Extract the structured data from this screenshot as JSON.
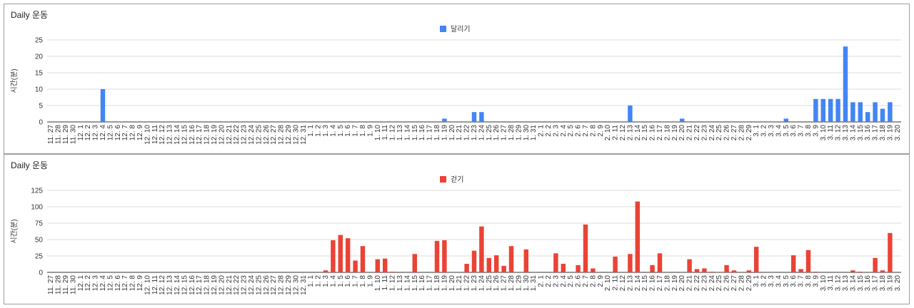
{
  "chart_data": [
    {
      "type": "bar",
      "title": "Daily 운동",
      "ylabel": "시간(분)",
      "ylim": [
        0,
        25
      ],
      "yticks": [
        0,
        5,
        10,
        15,
        20,
        25
      ],
      "legend_position": "top-center",
      "grid": true,
      "color": "#4285f4",
      "categories": [
        "11. 27",
        "11. 28",
        "11. 29",
        "11. 30",
        "12. 1",
        "12. 2",
        "12. 3",
        "12. 4",
        "12. 5",
        "12. 6",
        "12. 7",
        "12. 8",
        "12. 9",
        "12. 10",
        "12. 11",
        "12. 12",
        "12. 13",
        "12. 14",
        "12. 15",
        "12. 16",
        "12. 17",
        "12. 18",
        "12. 19",
        "12. 20",
        "12. 21",
        "12. 22",
        "12. 23",
        "12. 24",
        "12. 25",
        "12. 26",
        "12. 27",
        "12. 28",
        "12. 29",
        "12. 30",
        "12. 31",
        "1. 1",
        "1. 2",
        "1. 3",
        "1. 4",
        "1. 5",
        "1. 6",
        "1. 7",
        "1. 8",
        "1. 9",
        "1. 10",
        "1. 11",
        "1. 12",
        "1. 13",
        "1. 14",
        "1. 15",
        "1. 16",
        "1. 17",
        "1. 18",
        "1. 19",
        "1. 20",
        "1. 21",
        "1. 22",
        "1. 23",
        "1. 24",
        "1. 25",
        "1. 26",
        "1. 27",
        "1. 28",
        "1. 29",
        "1. 30",
        "1. 31",
        "2. 1",
        "2. 2",
        "2. 3",
        "2. 4",
        "2. 5",
        "2. 6",
        "2. 7",
        "2. 8",
        "2. 9",
        "2. 10",
        "2. 11",
        "2. 12",
        "2. 13",
        "2. 14",
        "2. 15",
        "2. 16",
        "2. 17",
        "2. 18",
        "2. 19",
        "2. 20",
        "2. 21",
        "2. 22",
        "2. 23",
        "2. 24",
        "2. 25",
        "2. 26",
        "2. 27",
        "2. 28",
        "2. 29",
        "3. 1",
        "3. 2",
        "3. 3",
        "3. 4",
        "3. 5",
        "3. 6",
        "3. 7",
        "3. 8",
        "3. 9",
        "3. 10",
        "3. 11",
        "3. 12",
        "3. 13",
        "3. 14",
        "3. 15",
        "3. 16",
        "3. 17",
        "3. 18",
        "3. 19",
        "3. 20"
      ],
      "series": [
        {
          "name": "달리기",
          "values": [
            0,
            0,
            0,
            0,
            0,
            0,
            0,
            10,
            0,
            0,
            0,
            0,
            0,
            0,
            0,
            0,
            0,
            0,
            0,
            0,
            0,
            0,
            0,
            0,
            0,
            0,
            0,
            0,
            0,
            0,
            0,
            0,
            0,
            0,
            0,
            0,
            0,
            0,
            0,
            0,
            0,
            0,
            0,
            0,
            0,
            0,
            0,
            0,
            0,
            0,
            0,
            0,
            0,
            1,
            0,
            0,
            0,
            3,
            3,
            0,
            0,
            0,
            0,
            0,
            0,
            0,
            0,
            0,
            0,
            0,
            0,
            0,
            0,
            0,
            0,
            0,
            0,
            0,
            5,
            0,
            0,
            0,
            0,
            0,
            0,
            1,
            0,
            0,
            0,
            0,
            0,
            0,
            0,
            0,
            0,
            0,
            0,
            0,
            0,
            1,
            0,
            0,
            0,
            7,
            7,
            7,
            7,
            23,
            6,
            6,
            3,
            6,
            4,
            6,
            0
          ]
        }
      ]
    },
    {
      "type": "bar",
      "title": "Daily 운동",
      "ylabel": "시간(분)",
      "ylim": [
        0,
        125
      ],
      "yticks": [
        0,
        25,
        50,
        75,
        100,
        125
      ],
      "legend_position": "top-center",
      "grid": true,
      "color": "#ea4335",
      "categories": [
        "11. 27",
        "11. 28",
        "11. 29",
        "11. 30",
        "12. 1",
        "12. 2",
        "12. 3",
        "12. 4",
        "12. 5",
        "12. 6",
        "12. 7",
        "12. 8",
        "12. 9",
        "12. 10",
        "12. 11",
        "12. 12",
        "12. 13",
        "12. 14",
        "12. 15",
        "12. 16",
        "12. 17",
        "12. 18",
        "12. 19",
        "12. 20",
        "12. 21",
        "12. 22",
        "12. 23",
        "12. 24",
        "12. 25",
        "12. 26",
        "12. 27",
        "12. 28",
        "12. 29",
        "12. 30",
        "12. 31",
        "1. 1",
        "1. 2",
        "1. 3",
        "1. 4",
        "1. 5",
        "1. 6",
        "1. 7",
        "1. 8",
        "1. 9",
        "1. 10",
        "1. 11",
        "1. 12",
        "1. 13",
        "1. 14",
        "1. 15",
        "1. 16",
        "1. 17",
        "1. 18",
        "1. 19",
        "1. 20",
        "1. 21",
        "1. 22",
        "1. 23",
        "1. 24",
        "1. 25",
        "1. 26",
        "1. 27",
        "1. 28",
        "1. 29",
        "1. 30",
        "1. 31",
        "2. 1",
        "2. 2",
        "2. 3",
        "2. 4",
        "2. 5",
        "2. 6",
        "2. 7",
        "2. 8",
        "2. 9",
        "2. 10",
        "2. 11",
        "2. 12",
        "2. 13",
        "2. 14",
        "2. 15",
        "2. 16",
        "2. 17",
        "2. 18",
        "2. 19",
        "2. 20",
        "2. 21",
        "2. 22",
        "2. 23",
        "2. 24",
        "2. 25",
        "2. 26",
        "2. 27",
        "2. 28",
        "2. 29",
        "3. 1",
        "3. 2",
        "3. 3",
        "3. 4",
        "3. 5",
        "3. 6",
        "3. 7",
        "3. 8",
        "3. 9",
        "3. 10",
        "3. 11",
        "3. 12",
        "3. 13",
        "3. 14",
        "3. 15",
        "3. 16",
        "3. 17",
        "3. 18",
        "3. 19",
        "3. 20"
      ],
      "series": [
        {
          "name": "걷기",
          "values": [
            0,
            0,
            0,
            0,
            0,
            0,
            0,
            0,
            0,
            0,
            0,
            0,
            0,
            0,
            0,
            0,
            0,
            0,
            0,
            0,
            0,
            0,
            0,
            0,
            0,
            0,
            0,
            0,
            0,
            0,
            0,
            0,
            0,
            0,
            0,
            0,
            0,
            3,
            49,
            57,
            52,
            18,
            40,
            0,
            20,
            21,
            1,
            0,
            0,
            28,
            0,
            0,
            48,
            49,
            0,
            0,
            13,
            33,
            70,
            22,
            26,
            10,
            40,
            0,
            35,
            0,
            0,
            0,
            29,
            13,
            0,
            11,
            73,
            6,
            0,
            0,
            24,
            0,
            28,
            108,
            0,
            11,
            29,
            0,
            0,
            0,
            20,
            5,
            6,
            1,
            0,
            11,
            3,
            0,
            3,
            39,
            0,
            0,
            0,
            0,
            26,
            5,
            34,
            1,
            0,
            0,
            0,
            0,
            3,
            1,
            0,
            22,
            3,
            60,
            0
          ]
        }
      ]
    }
  ]
}
